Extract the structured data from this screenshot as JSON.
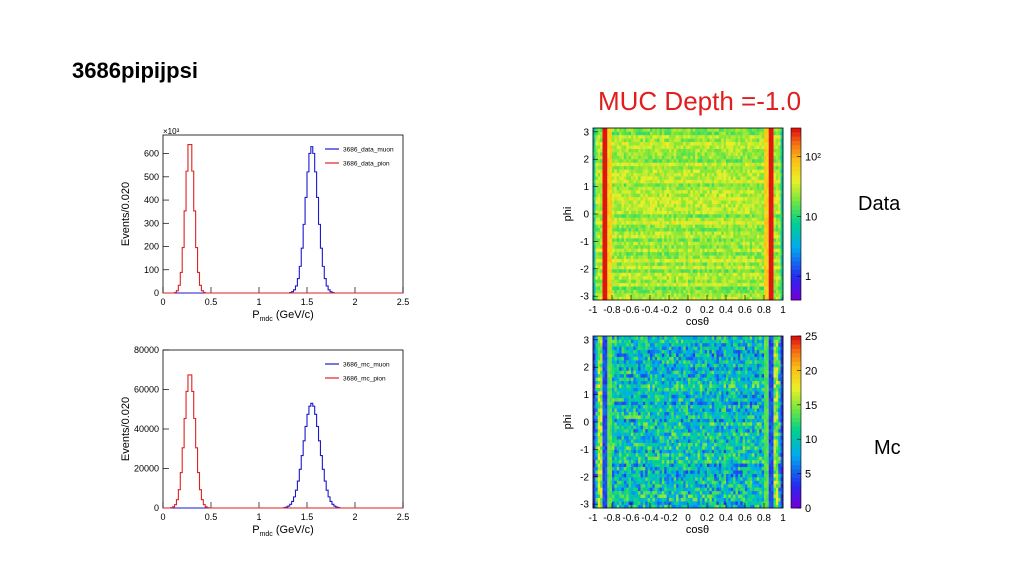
{
  "slide": {
    "title": "3686pipijpsi",
    "muc_title": "MUC Depth =-1.0",
    "label_data": "Data",
    "label_mc": "Mc"
  },
  "chart_data": [
    {
      "type": "line",
      "histogram": true,
      "xlabel_main": "P",
      "xlabel_sub": "mdc",
      "xlabel_unit": " (GeV/c)",
      "ylabel": "Events/0.020",
      "exponent_label": "×10³",
      "xlim": [
        0,
        2.5
      ],
      "ylim": [
        0,
        680
      ],
      "xticks": [
        "0",
        "0.5",
        "1",
        "1.5",
        "2",
        "2.5"
      ],
      "xtick_values": [
        0,
        0.5,
        1,
        1.5,
        2,
        2.5
      ],
      "yticks": [
        "0",
        "100",
        "200",
        "300",
        "400",
        "500",
        "600"
      ],
      "ytick_values": [
        0,
        100,
        200,
        300,
        400,
        500,
        600
      ],
      "legend_position": "top-right",
      "series": [
        {
          "name": "3686_data_muon",
          "color": "#1a1acc",
          "peak": 630,
          "mean": 1.55,
          "sigma": 0.065
        },
        {
          "name": "3686_data_pion",
          "color": "#dd2222",
          "peak": 655,
          "mean": 0.28,
          "sigma": 0.045
        }
      ]
    },
    {
      "type": "line",
      "histogram": true,
      "xlabel_main": "P",
      "xlabel_sub": "mdc",
      "xlabel_unit": " (GeV/c)",
      "ylabel": "Events/0.020",
      "exponent_label": "",
      "xlim": [
        0,
        2.5
      ],
      "ylim": [
        0,
        80000
      ],
      "xticks": [
        "0",
        "0.5",
        "1",
        "1.5",
        "2",
        "2.5"
      ],
      "xtick_values": [
        0,
        0.5,
        1,
        1.5,
        2,
        2.5
      ],
      "yticks": [
        "0",
        "20000",
        "40000",
        "60000",
        "80000"
      ],
      "ytick_values": [
        0,
        20000,
        40000,
        60000,
        80000
      ],
      "legend_position": "top-right",
      "series": [
        {
          "name": "3686_mc_muon",
          "color": "#1a1acc",
          "peak": 53000,
          "mean": 1.55,
          "sigma": 0.085
        },
        {
          "name": "3686_mc_pion",
          "color": "#dd2222",
          "peak": 68500,
          "mean": 0.28,
          "sigma": 0.055
        }
      ]
    },
    {
      "type": "heatmap",
      "xlabel": "cosθ",
      "ylabel": "phi",
      "xlim": [
        -1,
        1
      ],
      "ylim": [
        -3.14,
        3.14
      ],
      "xticks": [
        "-1",
        "-0.8",
        "-0.6",
        "-0.4",
        "-0.2",
        "0",
        "0.2",
        "0.4",
        "0.6",
        "0.8",
        "1"
      ],
      "xtick_values": [
        -1,
        -0.8,
        -0.6,
        -0.4,
        -0.2,
        0,
        0.2,
        0.4,
        0.6,
        0.8,
        1
      ],
      "yticks": [
        "3",
        "2",
        "1",
        "0",
        "-1",
        "-2",
        "-3"
      ],
      "ytick_values": [
        3,
        2,
        1,
        0,
        -1,
        -2,
        -3
      ],
      "log_scale": true,
      "zrange": [
        0.4,
        300
      ],
      "colorbar_ticks": [
        "10²",
        "10",
        "1"
      ],
      "colorbar_values": [
        100,
        10,
        1
      ],
      "bins": [
        80,
        50
      ],
      "base_level": 0.62,
      "edge_level": 1.0
    },
    {
      "type": "heatmap",
      "xlabel": "cosθ",
      "ylabel": "phi",
      "xlim": [
        -1,
        1
      ],
      "ylim": [
        -3.14,
        3.14
      ],
      "xticks": [
        "-1",
        "-0.8",
        "-0.6",
        "-0.4",
        "-0.2",
        "0",
        "0.2",
        "0.4",
        "0.6",
        "0.8",
        "1"
      ],
      "xtick_values": [
        -1,
        -0.8,
        -0.6,
        -0.4,
        -0.2,
        0,
        0.2,
        0.4,
        0.6,
        0.8,
        1
      ],
      "yticks": [
        "3",
        "2",
        "1",
        "0",
        "-1",
        "-2",
        "-3"
      ],
      "ytick_values": [
        3,
        2,
        1,
        0,
        -1,
        -2,
        -3
      ],
      "log_scale": false,
      "zrange": [
        0,
        25
      ],
      "colorbar_ticks": [
        "25",
        "20",
        "15",
        "10",
        "5",
        "0"
      ],
      "colorbar_values": [
        25,
        20,
        15,
        10,
        5,
        0
      ],
      "bins": [
        80,
        50
      ],
      "base_level": 0.38,
      "edge_level": 0.2
    }
  ]
}
